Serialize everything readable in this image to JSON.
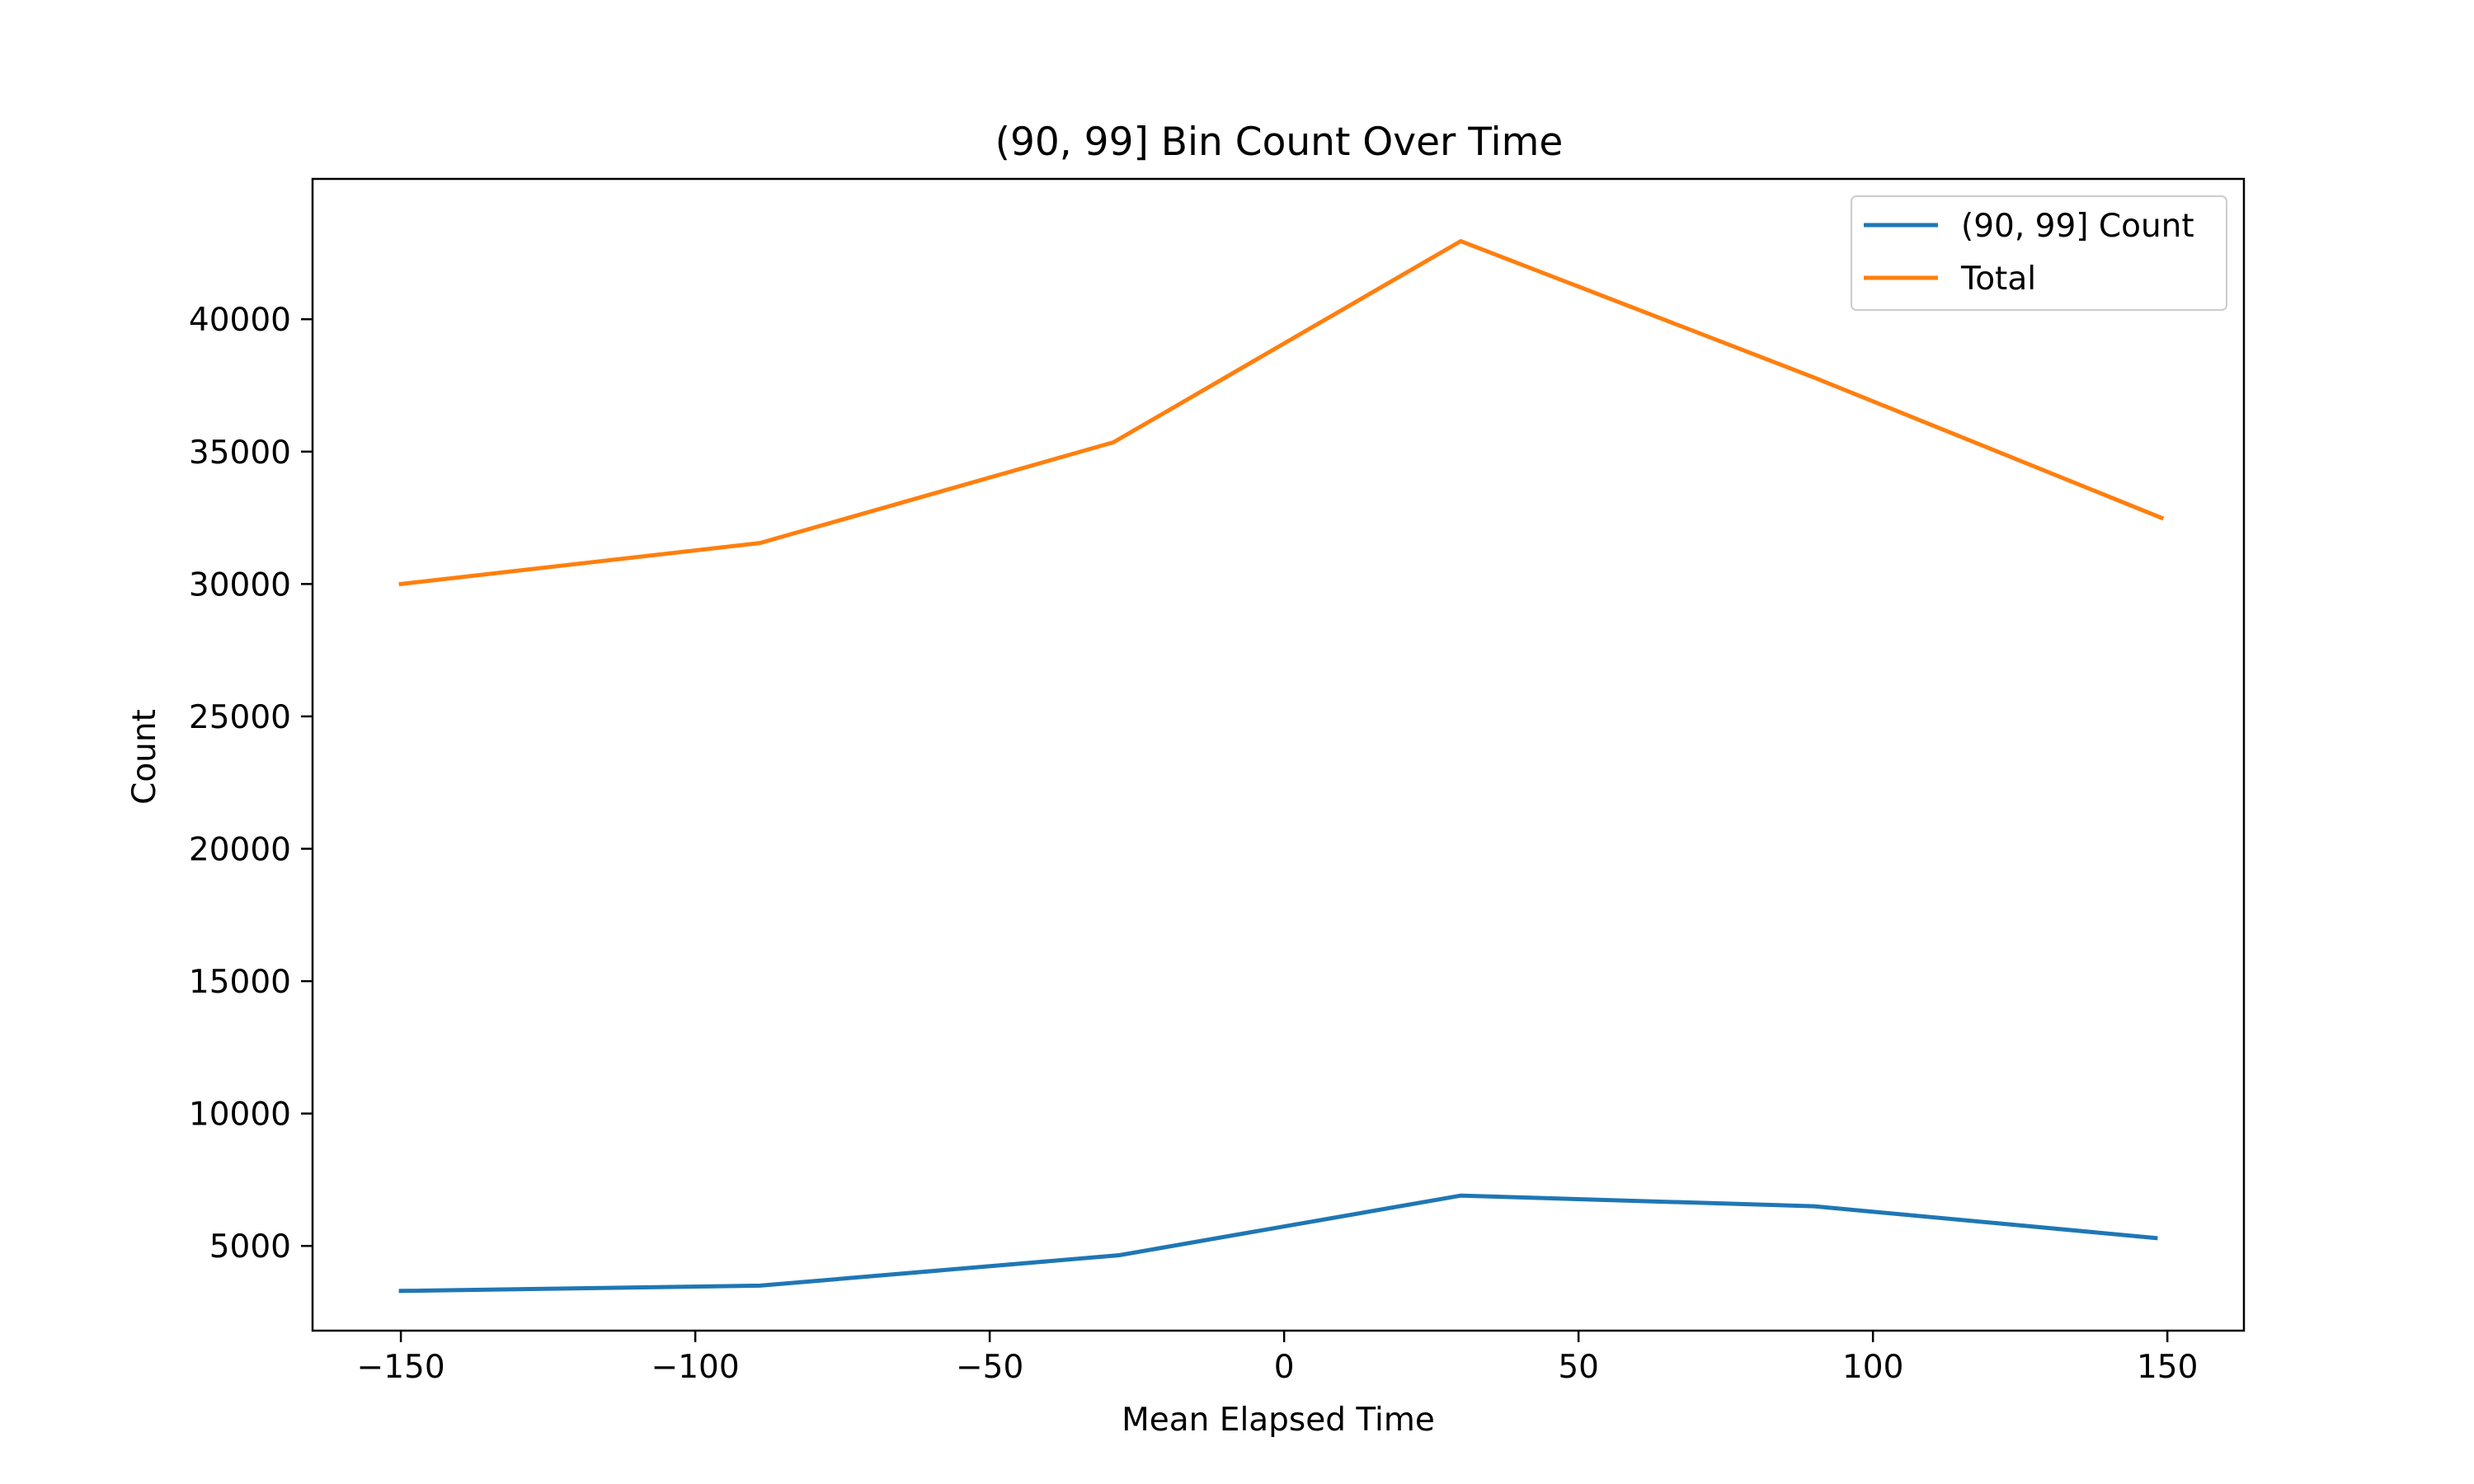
{
  "chart_data": {
    "type": "line",
    "title": "(90, 99] Bin Count Over Time",
    "xlabel": "Mean Elapsed Time",
    "ylabel": "Count",
    "xlim": [
      -165,
      163
    ],
    "ylim": [
      1800,
      45300
    ],
    "xticks": [
      -150,
      -100,
      -50,
      0,
      50,
      100,
      150
    ],
    "xtick_labels": [
      "−150",
      "−100",
      "−50",
      "0",
      "50",
      "100",
      "150"
    ],
    "yticks": [
      5000,
      10000,
      15000,
      20000,
      25000,
      30000,
      35000,
      40000
    ],
    "ytick_labels": [
      "5000",
      "10000",
      "15000",
      "20000",
      "25000",
      "30000",
      "35000",
      "40000"
    ],
    "grid": false,
    "legend_position": "top-right",
    "series": [
      {
        "name": "(90, 99] Count",
        "color": "#1f77b4",
        "x": [
          -150,
          -89,
          -28,
          30,
          90,
          148
        ],
        "y": [
          3300,
          3500,
          4650,
          6900,
          6500,
          5300
        ]
      },
      {
        "name": "Total",
        "color": "#ff7f0e",
        "x": [
          -150,
          -89,
          -29,
          30,
          90,
          149
        ],
        "y": [
          30000,
          31550,
          35350,
          42950,
          37800,
          32500
        ]
      }
    ]
  }
}
